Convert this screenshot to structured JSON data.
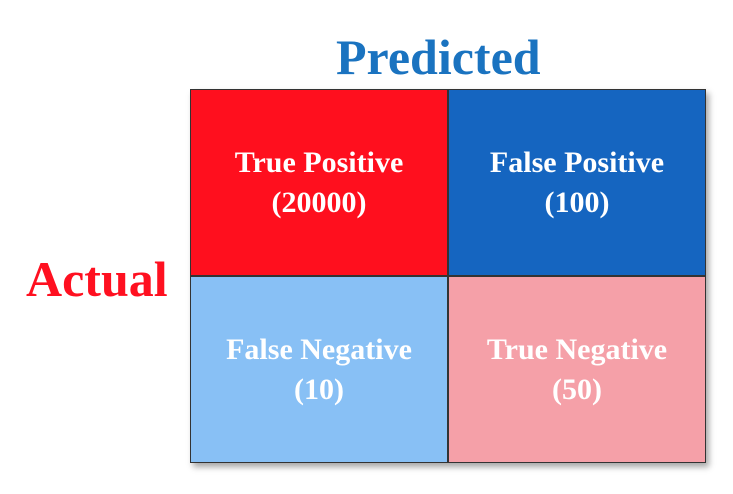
{
  "labels": {
    "predicted": "Predicted",
    "actual": "Actual"
  },
  "cells": [
    {
      "id": "true-positive",
      "name": "True Positive",
      "count": "(20000)",
      "color": "#ff0f1e"
    },
    {
      "id": "false-positive",
      "name": "False Positive",
      "count": "(100)",
      "color": "#1565c0"
    },
    {
      "id": "false-negative",
      "name": "False Negative",
      "count": "(10)",
      "color": "#88c0f5"
    },
    {
      "id": "true-negative",
      "name": "True Negative",
      "count": "(50)",
      "color": "#f5a0a8"
    }
  ]
}
